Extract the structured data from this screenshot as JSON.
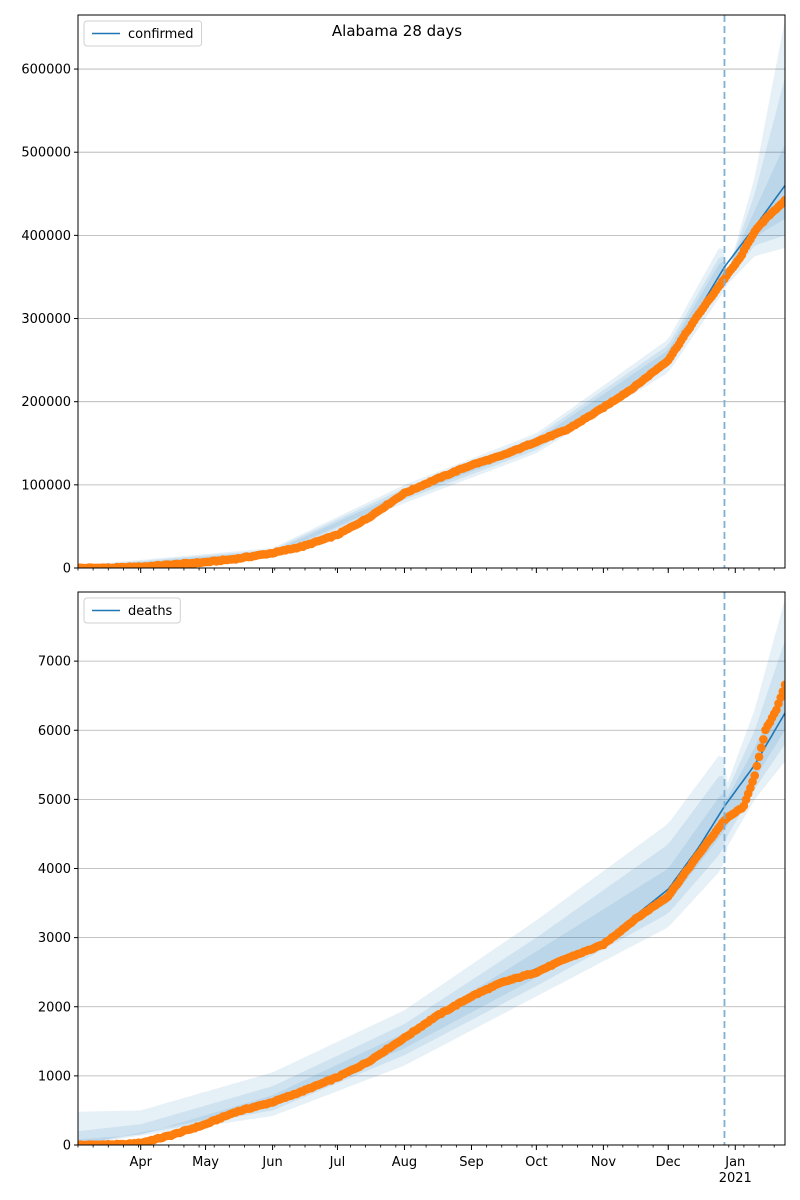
{
  "title": "Alabama 28 days",
  "colors": {
    "fit": "#1f77b4",
    "observed": "#ff7f0e",
    "band": "#1f77b4",
    "forecast_line": "#7fb1d6",
    "grid": "#b0b0b0"
  },
  "x_ticks": [
    "Apr",
    "May",
    "Jun",
    "Jul",
    "Aug",
    "Sep",
    "Oct",
    "Nov",
    "Dec",
    "Jan"
  ],
  "x_year_label": "2021",
  "chart_data": [
    {
      "type": "line",
      "name": "confirmed",
      "legend_label": "confirmed",
      "legend_position": "upper-left",
      "grid": "y",
      "xlim": [
        "2020-03-03",
        "2021-01-24"
      ],
      "ylim": [
        0,
        665000
      ],
      "yticks": [
        0,
        100000,
        200000,
        300000,
        400000,
        500000,
        600000
      ],
      "ytick_labels": [
        "0",
        "100000",
        "200000",
        "300000",
        "400000",
        "500000",
        "600000"
      ],
      "forecast_start": "2020-12-27",
      "fit_points": [
        [
          "2020-03-03",
          0
        ],
        [
          "2020-04-01",
          2000
        ],
        [
          "2020-05-01",
          7000
        ],
        [
          "2020-06-01",
          18000
        ],
        [
          "2020-07-01",
          40000
        ],
        [
          "2020-07-15",
          60000
        ],
        [
          "2020-08-01",
          88000
        ],
        [
          "2020-08-15",
          105000
        ],
        [
          "2020-09-01",
          122000
        ],
        [
          "2020-09-15",
          132000
        ],
        [
          "2020-10-01",
          150000
        ],
        [
          "2020-10-15",
          165000
        ],
        [
          "2020-11-01",
          190000
        ],
        [
          "2020-11-15",
          215000
        ],
        [
          "2020-12-01",
          255000
        ],
        [
          "2020-12-15",
          310000
        ],
        [
          "2020-12-27",
          362000
        ],
        [
          "2021-01-10",
          410000
        ],
        [
          "2021-01-24",
          460000
        ]
      ],
      "observed_points": [
        [
          "2020-03-03",
          0
        ],
        [
          "2020-03-20",
          300
        ],
        [
          "2020-04-01",
          1500
        ],
        [
          "2020-04-15",
          4000
        ],
        [
          "2020-05-01",
          7000
        ],
        [
          "2020-05-15",
          11000
        ],
        [
          "2020-06-01",
          18000
        ],
        [
          "2020-06-15",
          26000
        ],
        [
          "2020-07-01",
          40000
        ],
        [
          "2020-07-15",
          60000
        ],
        [
          "2020-08-01",
          90000
        ],
        [
          "2020-08-15",
          106000
        ],
        [
          "2020-09-01",
          124000
        ],
        [
          "2020-09-15",
          135000
        ],
        [
          "2020-10-01",
          152000
        ],
        [
          "2020-10-15",
          166000
        ],
        [
          "2020-11-01",
          193000
        ],
        [
          "2020-11-15",
          217000
        ],
        [
          "2020-12-01",
          250000
        ],
        [
          "2020-12-15",
          305000
        ],
        [
          "2020-12-27",
          348000
        ],
        [
          "2021-01-03",
          372000
        ],
        [
          "2021-01-10",
          405000
        ],
        [
          "2021-01-17",
          425000
        ],
        [
          "2021-01-24",
          442000
        ]
      ],
      "bands": [
        {
          "lower": [
            [
              "2020-03-03",
              0
            ],
            [
              "2020-06-01",
              12000
            ],
            [
              "2020-08-01",
              78000
            ],
            [
              "2020-10-01",
              138000
            ],
            [
              "2020-12-01",
              235000
            ],
            [
              "2020-12-26",
              330000
            ],
            [
              "2020-12-28",
              340000
            ],
            [
              "2021-01-10",
              375000
            ],
            [
              "2021-01-24",
              385000
            ]
          ],
          "upper": [
            [
              "2020-03-03",
              3000
            ],
            [
              "2020-06-01",
              24000
            ],
            [
              "2020-08-01",
              100000
            ],
            [
              "2020-10-01",
              162000
            ],
            [
              "2020-12-01",
              275000
            ],
            [
              "2020-12-26",
              392000
            ],
            [
              "2020-12-28",
              350000
            ],
            [
              "2021-01-10",
              470000
            ],
            [
              "2021-01-24",
              660000
            ]
          ]
        },
        {
          "lower": [
            [
              "2020-03-03",
              0
            ],
            [
              "2020-06-01",
              14000
            ],
            [
              "2020-08-01",
              82000
            ],
            [
              "2020-10-01",
              142000
            ],
            [
              "2020-12-01",
              242000
            ],
            [
              "2020-12-26",
              342000
            ],
            [
              "2020-12-28",
              345000
            ],
            [
              "2021-01-10",
              388000
            ],
            [
              "2021-01-24",
              400000
            ]
          ],
          "upper": [
            [
              "2020-03-03",
              2000
            ],
            [
              "2020-06-01",
              22000
            ],
            [
              "2020-08-01",
              96000
            ],
            [
              "2020-10-01",
              158000
            ],
            [
              "2020-12-01",
              268000
            ],
            [
              "2020-12-26",
              380000
            ],
            [
              "2020-12-28",
              352000
            ],
            [
              "2021-01-10",
              450000
            ],
            [
              "2021-01-24",
              590000
            ]
          ]
        },
        {
          "lower": [
            [
              "2020-03-03",
              0
            ],
            [
              "2020-06-01",
              16000
            ],
            [
              "2020-08-01",
              85000
            ],
            [
              "2020-10-01",
              146000
            ],
            [
              "2020-12-01",
              248000
            ],
            [
              "2020-12-26",
              352000
            ],
            [
              "2020-12-28",
              348000
            ],
            [
              "2021-01-10",
              398000
            ],
            [
              "2021-01-24",
              420000
            ]
          ],
          "upper": [
            [
              "2020-03-03",
              1000
            ],
            [
              "2020-06-01",
              20000
            ],
            [
              "2020-08-01",
              92000
            ],
            [
              "2020-10-01",
              154000
            ],
            [
              "2020-12-01",
              262000
            ],
            [
              "2020-12-26",
              372000
            ],
            [
              "2020-12-28",
              355000
            ],
            [
              "2021-01-10",
              430000
            ],
            [
              "2021-01-24",
              510000
            ]
          ]
        }
      ]
    },
    {
      "type": "line",
      "name": "deaths",
      "legend_label": "deaths",
      "legend_position": "upper-left",
      "grid": "y",
      "xlim": [
        "2020-03-03",
        "2021-01-24"
      ],
      "ylim": [
        0,
        8000
      ],
      "yticks": [
        0,
        1000,
        2000,
        3000,
        4000,
        5000,
        6000,
        7000
      ],
      "ytick_labels": [
        "0",
        "1000",
        "2000",
        "3000",
        "4000",
        "5000",
        "6000",
        "7000"
      ],
      "forecast_start": "2020-12-27",
      "fit_points": [
        [
          "2020-03-03",
          0
        ],
        [
          "2020-03-25",
          10
        ],
        [
          "2020-04-01",
          40
        ],
        [
          "2020-05-01",
          280
        ],
        [
          "2020-06-01",
          620
        ],
        [
          "2020-07-01",
          980
        ],
        [
          "2020-08-01",
          1500
        ],
        [
          "2020-09-01",
          2150
        ],
        [
          "2020-10-01",
          2550
        ],
        [
          "2020-11-01",
          2950
        ],
        [
          "2020-12-01",
          3700
        ],
        [
          "2020-12-15",
          4300
        ],
        [
          "2020-12-27",
          4900
        ],
        [
          "2021-01-10",
          5500
        ],
        [
          "2021-01-24",
          6250
        ]
      ],
      "observed_points": [
        [
          "2020-03-03",
          0
        ],
        [
          "2020-03-25",
          10
        ],
        [
          "2020-04-01",
          30
        ],
        [
          "2020-04-15",
          140
        ],
        [
          "2020-05-01",
          300
        ],
        [
          "2020-05-15",
          480
        ],
        [
          "2020-06-01",
          620
        ],
        [
          "2020-06-15",
          780
        ],
        [
          "2020-07-01",
          980
        ],
        [
          "2020-07-15",
          1200
        ],
        [
          "2020-08-01",
          1550
        ],
        [
          "2020-08-15",
          1850
        ],
        [
          "2020-09-01",
          2150
        ],
        [
          "2020-09-15",
          2350
        ],
        [
          "2020-10-01",
          2500
        ],
        [
          "2020-10-15",
          2700
        ],
        [
          "2020-11-01",
          2900
        ],
        [
          "2020-11-15",
          3250
        ],
        [
          "2020-12-01",
          3600
        ],
        [
          "2020-12-15",
          4200
        ],
        [
          "2020-12-27",
          4700
        ],
        [
          "2021-01-05",
          4900
        ],
        [
          "2021-01-10",
          5350
        ],
        [
          "2021-01-15",
          6000
        ],
        [
          "2021-01-20",
          6300
        ],
        [
          "2021-01-24",
          6650
        ]
      ],
      "bands": [
        {
          "lower": [
            [
              "2020-03-03",
              0
            ],
            [
              "2020-06-01",
              420
            ],
            [
              "2020-08-01",
              1150
            ],
            [
              "2020-10-01",
              2150
            ],
            [
              "2020-12-01",
              3150
            ],
            [
              "2020-12-26",
              4000
            ],
            [
              "2020-12-28",
              4300
            ],
            [
              "2021-01-10",
              5000
            ],
            [
              "2021-01-24",
              5550
            ]
          ],
          "upper": [
            [
              "2020-03-03",
              480
            ],
            [
              "2020-04-01",
              500
            ],
            [
              "2020-06-01",
              1050
            ],
            [
              "2020-08-01",
              1950
            ],
            [
              "2020-10-01",
              3250
            ],
            [
              "2020-12-01",
              4650
            ],
            [
              "2020-12-26",
              5700
            ],
            [
              "2020-12-28",
              5200
            ],
            [
              "2021-01-10",
              6300
            ],
            [
              "2021-01-24",
              7900
            ]
          ]
        },
        {
          "lower": [
            [
              "2020-03-03",
              0
            ],
            [
              "2020-06-01",
              500
            ],
            [
              "2020-08-01",
              1300
            ],
            [
              "2020-10-01",
              2300
            ],
            [
              "2020-12-01",
              3350
            ],
            [
              "2020-12-26",
              4250
            ],
            [
              "2020-12-28",
              4450
            ],
            [
              "2021-01-10",
              5150
            ],
            [
              "2021-01-24",
              5800
            ]
          ],
          "upper": [
            [
              "2020-03-03",
              200
            ],
            [
              "2020-04-01",
              300
            ],
            [
              "2020-06-01",
              850
            ],
            [
              "2020-08-01",
              1750
            ],
            [
              "2020-10-01",
              3000
            ],
            [
              "2020-12-01",
              4350
            ],
            [
              "2020-12-26",
              5400
            ],
            [
              "2020-12-28",
              5100
            ],
            [
              "2021-01-10",
              6000
            ],
            [
              "2021-01-24",
              7300
            ]
          ]
        },
        {
          "lower": [
            [
              "2020-03-03",
              0
            ],
            [
              "2020-06-01",
              560
            ],
            [
              "2020-08-01",
              1400
            ],
            [
              "2020-10-01",
              2420
            ],
            [
              "2020-12-01",
              3500
            ],
            [
              "2020-12-26",
              4500
            ],
            [
              "2020-12-28",
              4600
            ],
            [
              "2021-01-10",
              5300
            ],
            [
              "2021-01-24",
              6000
            ]
          ],
          "upper": [
            [
              "2020-03-03",
              80
            ],
            [
              "2020-04-01",
              150
            ],
            [
              "2020-06-01",
              720
            ],
            [
              "2020-08-01",
              1620
            ],
            [
              "2020-10-01",
              2800
            ],
            [
              "2020-12-01",
              4000
            ],
            [
              "2020-12-26",
              5100
            ],
            [
              "2020-12-28",
              5000
            ],
            [
              "2021-01-10",
              5750
            ],
            [
              "2021-01-24",
              6700
            ]
          ]
        }
      ]
    }
  ]
}
